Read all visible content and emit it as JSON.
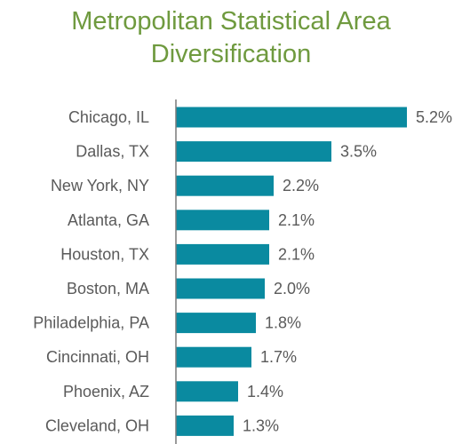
{
  "header": {
    "title_line1": "Metropolitan Statistical Area",
    "title_line2": "Diversification"
  },
  "colors": {
    "title": "#6f9a3f",
    "bar": "#0a8aa0",
    "axis": "#7a7a7a",
    "text": "#5a5a5a"
  },
  "chart_data": {
    "type": "bar",
    "orientation": "horizontal",
    "title": "Metropolitan Statistical Area Diversification",
    "xlabel": "",
    "ylabel": "",
    "categories": [
      "Chicago, IL",
      "Dallas, TX",
      "New York, NY",
      "Atlanta, GA",
      "Houston, TX",
      "Boston, MA",
      "Philadelphia, PA",
      "Cincinnati, OH",
      "Phoenix, AZ",
      "Cleveland, OH"
    ],
    "values": [
      5.2,
      3.5,
      2.2,
      2.1,
      2.1,
      2.0,
      1.8,
      1.7,
      1.4,
      1.3
    ],
    "value_labels": [
      "5.2%",
      "3.5%",
      "2.2%",
      "2.1%",
      "2.1%",
      "2.0%",
      "1.8%",
      "1.7%",
      "1.4%",
      "1.3%"
    ],
    "xlim": [
      0,
      5.2
    ],
    "grid": false,
    "legend": "none"
  }
}
